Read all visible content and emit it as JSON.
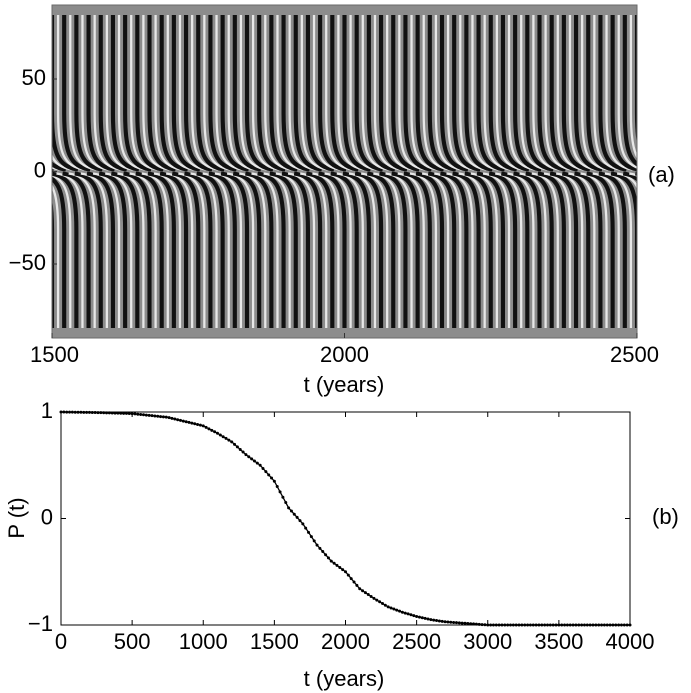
{
  "chart_data": [
    {
      "type": "heatmap",
      "panel_label": "(a)",
      "xlabel": "t (years)",
      "ylabel": "",
      "xlim": [
        1500,
        2500
      ],
      "ylim": [
        -90,
        90
      ],
      "x_ticks": [
        "1500",
        "2000",
        "2500"
      ],
      "y_ticks": [
        "50",
        "0",
        "−50"
      ],
      "colormap": "grayscale",
      "pattern": "time-latitude butterfly diagram: periodic dark/light bands drifting from high latitudes toward the equator in each hemisphere; northern hemisphere bands bend to the right near the equator, southern hemisphere bands bend to the left near the equator",
      "approx_cycles": 48
    },
    {
      "type": "line",
      "panel_label": "(b)",
      "xlabel": "t (years)",
      "ylabel": "P (t)",
      "xlim": [
        0,
        4000
      ],
      "ylim": [
        -1,
        1
      ],
      "x_ticks": [
        "0",
        "500",
        "1000",
        "1500",
        "2000",
        "2500",
        "3000",
        "3500",
        "4000"
      ],
      "y_ticks": [
        "1",
        "0",
        "−1"
      ],
      "marker": "dot",
      "series": [
        {
          "x": [
            0,
            250,
            500,
            750,
            1000,
            1100,
            1200,
            1300,
            1400,
            1500,
            1600,
            1700,
            1800,
            1900,
            2000,
            2100,
            2200,
            2300,
            2400,
            2500,
            2600,
            2700,
            2800,
            2900,
            3000,
            3100,
            3200,
            3300,
            3400,
            3500,
            3600,
            3700,
            3800,
            3900,
            4000
          ],
          "values": [
            1.0,
            0.995,
            0.985,
            0.95,
            0.87,
            0.8,
            0.72,
            0.6,
            0.5,
            0.35,
            0.1,
            -0.05,
            -0.25,
            -0.4,
            -0.5,
            -0.66,
            -0.75,
            -0.83,
            -0.88,
            -0.92,
            -0.95,
            -0.97,
            -0.98,
            -0.99,
            -1.0,
            -1.0,
            -1.0,
            -1.0,
            -1.0,
            -1.0,
            -1.0,
            -1.0,
            -1.0,
            -1.0,
            -1.0
          ]
        }
      ]
    }
  ]
}
